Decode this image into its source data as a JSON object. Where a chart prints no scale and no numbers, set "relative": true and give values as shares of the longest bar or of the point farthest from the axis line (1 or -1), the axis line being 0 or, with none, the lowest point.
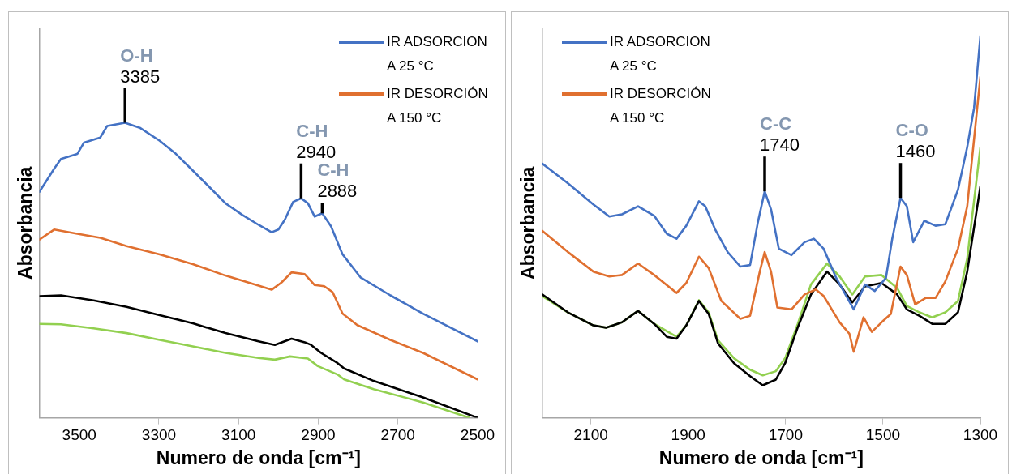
{
  "chart_data": [
    {
      "type": "line",
      "relative": true,
      "xlabel": "Numero de onda [cm⁻¹]",
      "ylabel": "Absorbancia",
      "xlim": [
        3600,
        2500
      ],
      "xticks": [
        3500,
        3300,
        3100,
        2900,
        2700,
        2500
      ],
      "legend": "top right",
      "annotations": [
        {
          "text": "O-H",
          "x": 3385,
          "y": 1.0
        },
        {
          "text": "3385",
          "x": 3385,
          "y": 1.0
        },
        {
          "text": "C-H",
          "x": 2943,
          "y": 0.744
        },
        {
          "text": "2940",
          "x": 2943,
          "y": 0.744
        },
        {
          "text": "C-H",
          "x": 2890,
          "y": 0.693
        },
        {
          "text": "2888",
          "x": 2890,
          "y": 0.693
        }
      ],
      "series": [
        {
          "name": "IR ADSORCION A 25 °C",
          "color": "#4472c4",
          "x": [
            3600,
            3563,
            3546,
            3505,
            3488,
            3447,
            3430,
            3385,
            3348,
            3298,
            3257,
            3215,
            3174,
            3133,
            3091,
            3050,
            3017,
            3000,
            2984,
            2963,
            2943,
            2926,
            2909,
            2890,
            2868,
            2839,
            2794,
            2719,
            2637,
            2500
          ],
          "values": [
            0.766,
            0.844,
            0.877,
            0.894,
            0.933,
            0.95,
            0.989,
            1.0,
            0.983,
            0.939,
            0.894,
            0.838,
            0.783,
            0.727,
            0.688,
            0.654,
            0.629,
            0.638,
            0.671,
            0.732,
            0.744,
            0.727,
            0.682,
            0.693,
            0.649,
            0.554,
            0.476,
            0.415,
            0.353,
            0.259
          ]
        },
        {
          "name": "IR DESORCIÓN A 150 °C",
          "color": "#e07030",
          "x": [
            3600,
            3563,
            3505,
            3447,
            3381,
            3298,
            3215,
            3133,
            3050,
            3017,
            2992,
            2967,
            2934,
            2909,
            2885,
            2864,
            2839,
            2802,
            2719,
            2637,
            2500
          ],
          "values": [
            0.604,
            0.638,
            0.624,
            0.61,
            0.582,
            0.554,
            0.521,
            0.482,
            0.448,
            0.434,
            0.459,
            0.493,
            0.487,
            0.45,
            0.446,
            0.426,
            0.353,
            0.314,
            0.264,
            0.22,
            0.13
          ]
        },
        {
          "color": "#000000",
          "x": [
            3600,
            3546,
            3464,
            3381,
            3298,
            3215,
            3133,
            3050,
            3009,
            2967,
            2934,
            2918,
            2893,
            2852,
            2835,
            2761,
            2637,
            2500
          ],
          "values": [
            0.412,
            0.415,
            0.398,
            0.376,
            0.348,
            0.32,
            0.287,
            0.259,
            0.247,
            0.268,
            0.256,
            0.247,
            0.22,
            0.186,
            0.167,
            0.125,
            0.069,
            0
          ]
        },
        {
          "color": "#92d050",
          "x": [
            3600,
            3546,
            3464,
            3381,
            3298,
            3215,
            3133,
            3050,
            3009,
            2971,
            2926,
            2901,
            2852,
            2835,
            2761,
            2637,
            2521
          ],
          "values": [
            0.318,
            0.317,
            0.303,
            0.287,
            0.264,
            0.242,
            0.22,
            0.203,
            0.197,
            0.208,
            0.201,
            0.175,
            0.147,
            0.13,
            0.097,
            0.052,
            0
          ]
        }
      ]
    },
    {
      "type": "line",
      "relative": true,
      "xlabel": "Numero de onda [cm⁻¹]",
      "ylabel": "Absorbancia",
      "xlim": [
        2200,
        1300
      ],
      "xticks": [
        2100,
        1900,
        1700,
        1500,
        1300
      ],
      "legend": "top left",
      "annotations": [
        {
          "text": "C-C",
          "x": 1743,
          "y": 0.593
        },
        {
          "text": "1740",
          "x": 1743,
          "y": 0.593
        },
        {
          "text": "C-O",
          "x": 1464,
          "y": 0.576
        },
        {
          "text": "1460",
          "x": 1464,
          "y": 0.576
        }
      ],
      "series": [
        {
          "name": "IR ADSORCION A 25 °C",
          "color": "#4472c4",
          "x": [
            2200,
            2147,
            2095,
            2062,
            2036,
            2003,
            1970,
            1944,
            1924,
            1904,
            1878,
            1865,
            1845,
            1819,
            1793,
            1773,
            1757,
            1743,
            1730,
            1714,
            1688,
            1661,
            1642,
            1622,
            1596,
            1560,
            1537,
            1517,
            1494,
            1481,
            1464,
            1451,
            1438,
            1415,
            1392,
            1372,
            1346,
            1327,
            1313,
            1300
          ],
          "values": [
            0.666,
            0.614,
            0.559,
            0.527,
            0.533,
            0.554,
            0.529,
            0.482,
            0.469,
            0.503,
            0.567,
            0.554,
            0.494,
            0.434,
            0.396,
            0.4,
            0.512,
            0.593,
            0.546,
            0.443,
            0.426,
            0.46,
            0.469,
            0.443,
            0.366,
            0.284,
            0.349,
            0.332,
            0.366,
            0.469,
            0.576,
            0.554,
            0.46,
            0.516,
            0.503,
            0.507,
            0.597,
            0.709,
            0.811,
            1.0
          ]
        },
        {
          "name": "IR DESORCIÓN A 150 °C",
          "color": "#e07030",
          "x": [
            2200,
            2147,
            2095,
            2062,
            2036,
            2003,
            1970,
            1924,
            1904,
            1878,
            1858,
            1832,
            1793,
            1773,
            1753,
            1743,
            1730,
            1717,
            1688,
            1661,
            1638,
            1622,
            1589,
            1569,
            1560,
            1540,
            1523,
            1503,
            1484,
            1464,
            1451,
            1434,
            1412,
            1392,
            1372,
            1346,
            1327,
            1300
          ],
          "values": [
            0.49,
            0.434,
            0.383,
            0.37,
            0.374,
            0.404,
            0.374,
            0.327,
            0.353,
            0.422,
            0.392,
            0.306,
            0.259,
            0.267,
            0.383,
            0.434,
            0.383,
            0.289,
            0.284,
            0.323,
            0.336,
            0.319,
            0.25,
            0.22,
            0.173,
            0.263,
            0.225,
            0.25,
            0.272,
            0.396,
            0.374,
            0.297,
            0.314,
            0.314,
            0.357,
            0.443,
            0.554,
            0.893
          ]
        },
        {
          "color": "#000000",
          "x": [
            2200,
            2147,
            2095,
            2069,
            2036,
            2003,
            1970,
            1944,
            1924,
            1904,
            1878,
            1858,
            1839,
            1806,
            1773,
            1747,
            1720,
            1701,
            1675,
            1648,
            1615,
            1589,
            1563,
            1537,
            1503,
            1471,
            1451,
            1425,
            1399,
            1372,
            1346,
            1327,
            1300
          ],
          "values": [
            0.323,
            0.276,
            0.242,
            0.236,
            0.25,
            0.28,
            0.246,
            0.212,
            0.207,
            0.242,
            0.306,
            0.272,
            0.195,
            0.143,
            0.109,
            0.085,
            0.1,
            0.143,
            0.237,
            0.323,
            0.383,
            0.349,
            0.302,
            0.344,
            0.353,
            0.323,
            0.284,
            0.267,
            0.246,
            0.246,
            0.276,
            0.383,
            0.606
          ]
        },
        {
          "color": "#92d050",
          "x": [
            2200,
            2147,
            2095,
            2069,
            2036,
            2003,
            1970,
            1924,
            1904,
            1878,
            1858,
            1839,
            1806,
            1773,
            1747,
            1720,
            1701,
            1675,
            1648,
            1615,
            1589,
            1563,
            1537,
            1503,
            1471,
            1451,
            1425,
            1399,
            1372,
            1346,
            1327,
            1300
          ],
          "values": [
            0.319,
            0.276,
            0.242,
            0.236,
            0.25,
            0.28,
            0.246,
            0.212,
            0.242,
            0.308,
            0.276,
            0.203,
            0.156,
            0.126,
            0.111,
            0.122,
            0.156,
            0.246,
            0.349,
            0.404,
            0.37,
            0.323,
            0.37,
            0.374,
            0.34,
            0.293,
            0.276,
            0.263,
            0.276,
            0.306,
            0.417,
            0.709
          ]
        }
      ]
    }
  ]
}
